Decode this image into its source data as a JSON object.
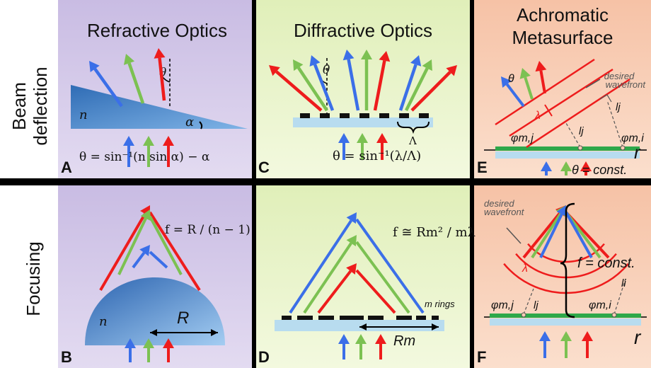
{
  "rows": {
    "beam": "Beam deflection",
    "beam_l1": "Beam",
    "beam_l2": "deflection",
    "focus": "Focusing"
  },
  "columns": {
    "refractive": "Refractive Optics",
    "diffractive": "Diffractive Optics",
    "achromatic_l1": "Achromatic",
    "achromatic_l2": "Metasurface"
  },
  "panels": [
    "A",
    "B",
    "C",
    "D",
    "E",
    "F"
  ],
  "symbols": {
    "n": "n",
    "alpha": "α",
    "theta": "θ",
    "Lambda": "Λ",
    "lambda": "λ",
    "R": "R",
    "Rm": "Rm",
    "m_rings": "m rings",
    "l_i": "li",
    "l_j": "lj",
    "phi_mi": "φm,i",
    "phi_mj": "φm,j",
    "r": "r"
  },
  "equations": {
    "a": "θ = sin⁻¹(n sin α) − α",
    "b": "f = R / (n − 1)",
    "c": "θ = sin⁻¹(λ/Λ)",
    "d": "f ≅ Rm² / mλ",
    "e": "θ = const.",
    "f": "f = const."
  },
  "labels": {
    "desired_wavefront_l1": "desired",
    "desired_wavefront_l2": "wavefront"
  },
  "colors": {
    "red": "#ee1c1c",
    "green": "#7cc152",
    "blue": "#3b6fe8",
    "purple_bg": "#d6cbe8",
    "green_bg": "#e9f3c9",
    "orange_bg": "#f8cdb4",
    "glass": "#b8dcef",
    "prism": "#4a83c4",
    "metasurface": "#2ea84a"
  }
}
